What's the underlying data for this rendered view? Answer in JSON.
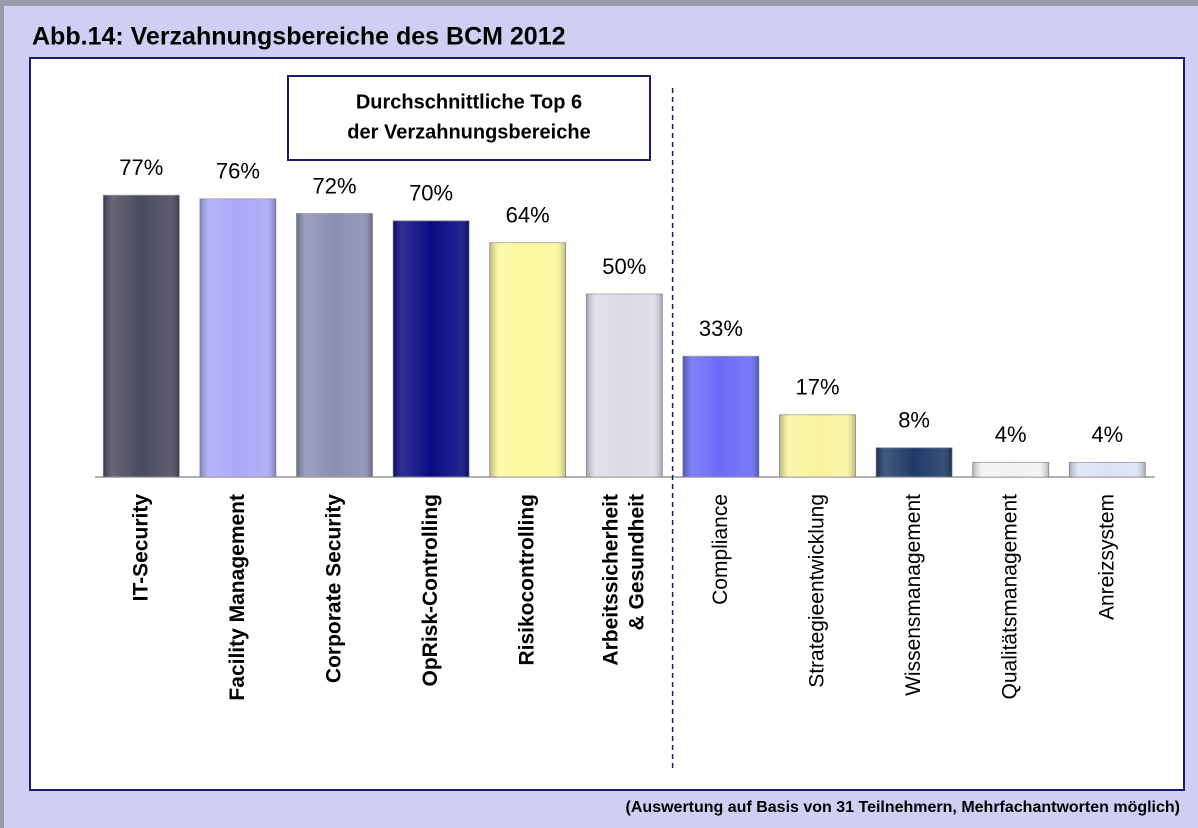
{
  "chart_data": {
    "type": "bar",
    "title": "Abb.14: Verzahnungsbereiche des BCM 2012",
    "annotation": [
      "Durchschnittliche Top 6",
      "der Verzahnungsbereiche"
    ],
    "footnote": "(Auswertung auf Basis von 31 Teilnehmern, Mehrfachantworten möglich)",
    "categories": [
      "IT-Security",
      "Facility Management",
      "Corporate Security",
      "OpRisk-Controlling",
      "Risikocontrolling",
      "Arbeitssicherheit & Gesundheit",
      "Compliance",
      "Strategieentwicklung",
      "Wissensmanagement",
      "Qualitätsmanagement",
      "Anreizsystem"
    ],
    "values": [
      77,
      76,
      72,
      70,
      64,
      50,
      33,
      17,
      8,
      4,
      4
    ],
    "value_labels": [
      "77%",
      "76%",
      "72%",
      "70%",
      "64%",
      "50%",
      "33%",
      "17%",
      "8%",
      "4%",
      "4%"
    ],
    "colors": [
      "#4b4b5f",
      "#a9a9f7",
      "#8b8fb2",
      "#0b0b82",
      "#fbf89e",
      "#dcdce8",
      "#6b6bf7",
      "#f8f49e",
      "#213b69",
      "#f2f2f2",
      "#dbe3f3"
    ],
    "highlight_count": 6,
    "ylim": [
      0,
      100
    ]
  }
}
